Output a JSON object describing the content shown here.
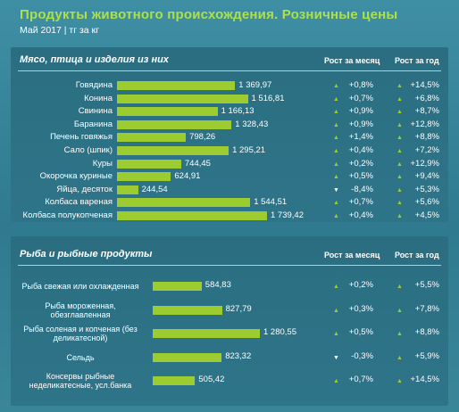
{
  "title": "Продукты животного происхождения. Розничные цены",
  "subtitle": "Май 2017 | тг за кг",
  "colors": {
    "background": "#3a889c",
    "panel": "#2c7085",
    "bar": "#9ccc2f",
    "title": "#aee04a"
  },
  "chart_data": [
    {
      "type": "bar",
      "title": "Мясо, птица и изделия из них",
      "column_headers": [
        "Рост за месяц",
        "Рост за год"
      ],
      "categories": [
        "Говядина",
        "Конина",
        "Свинина",
        "Баранина",
        "Печень говяжья",
        "Сало (шпик)",
        "Куры",
        "Окорочка куриные",
        "Яйца, десяток",
        "Колбаса вареная",
        "Колбаса полукопченая"
      ],
      "values": [
        1369.97,
        1516.81,
        1166.13,
        1328.43,
        798.26,
        1295.21,
        744.45,
        624.91,
        244.54,
        1544.51,
        1739.42
      ],
      "value_labels": [
        "1 369,97",
        "1 516,81",
        "1 166,13",
        "1 328,43",
        "798,26",
        "1 295,21",
        "744,45",
        "624,91",
        "244,54",
        "1 544,51",
        "1 739,42"
      ],
      "month_change": [
        "+0,8%",
        "+0,7%",
        "+0,9%",
        "+0,9%",
        "+1,4%",
        "+0,4%",
        "+0,2%",
        "+0,5%",
        "-8,4%",
        "+0,7%",
        "+0,4%"
      ],
      "year_change": [
        "+14,5%",
        "+6,8%",
        "+8,7%",
        "+12,8%",
        "+8,8%",
        "+7,2%",
        "+12,9%",
        "+9,4%",
        "+5,3%",
        "+5,6%",
        "+4,5%"
      ],
      "month_direction": [
        "up",
        "up",
        "up",
        "up",
        "up",
        "up",
        "up",
        "up",
        "down",
        "up",
        "up"
      ],
      "year_direction": [
        "up",
        "up",
        "up",
        "up",
        "up",
        "up",
        "up",
        "up",
        "up",
        "up",
        "up"
      ]
    },
    {
      "type": "bar",
      "title": "Рыба и рыбные продукты",
      "column_headers": [
        "Рост за месяц",
        "Рост за год"
      ],
      "categories": [
        "Рыба свежая или охлажденная",
        "Рыба мороженная, обезглавленная",
        "Рыба соленая и копченая (без деликатесной)",
        "Сельдь",
        "Консервы рыбные неделикатесные, усл.банка"
      ],
      "category_lines": [
        [
          "Рыба свежая или охлажденная"
        ],
        [
          "Рыба мороженная,",
          "обезглавленная"
        ],
        [
          "Рыба соленая и копченая (без",
          "деликатесной)"
        ],
        [
          "Сельдь"
        ],
        [
          "Консервы рыбные",
          "неделикатесные, усл.банка"
        ]
      ],
      "values": [
        584.83,
        827.79,
        1280.55,
        823.32,
        505.42
      ],
      "value_labels": [
        "584,83",
        "827,79",
        "1 280,55",
        "823,32",
        "505,42"
      ],
      "month_change": [
        "+0,2%",
        "+0,3%",
        "+0,5%",
        "-0,3%",
        "+0,7%"
      ],
      "year_change": [
        "+5,5%",
        "+7,8%",
        "+8,8%",
        "+5,9%",
        "+14,5%"
      ],
      "month_direction": [
        "up",
        "up",
        "up",
        "down",
        "up"
      ],
      "year_direction": [
        "up",
        "up",
        "up",
        "up",
        "up"
      ]
    }
  ]
}
